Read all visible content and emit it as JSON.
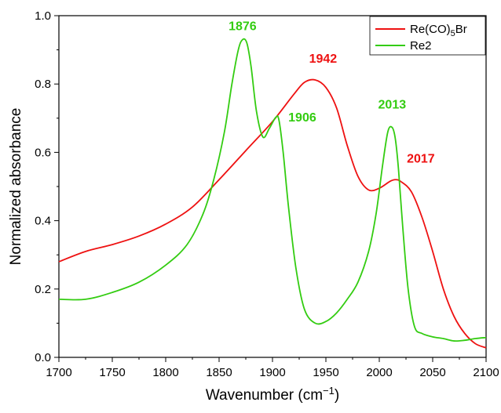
{
  "chart_data": {
    "type": "line",
    "xlabel": "Wavenumber (cm",
    "xlabel_superscript": "−1",
    "xlabel_suffix": ")",
    "ylabel": "Normalized absorbance",
    "xlim": [
      1700,
      2100
    ],
    "ylim": [
      0,
      1.0
    ],
    "xticks": [
      "1700",
      "1750",
      "1800",
      "1850",
      "1900",
      "1950",
      "2000",
      "2050",
      "2100"
    ],
    "yticks": [
      "0.0",
      "0.2",
      "0.4",
      "0.6",
      "0.8",
      "1.0"
    ],
    "grid": false,
    "legend_position": "top-right",
    "series": [
      {
        "name": "Re(CO)",
        "name_subscript": "5",
        "name_suffix": "Br",
        "color": "#ee1111",
        "x": [
          1700,
          1725,
          1750,
          1775,
          1800,
          1825,
          1850,
          1875,
          1900,
          1920,
          1930,
          1940,
          1950,
          1960,
          1970,
          1980,
          1990,
          2000,
          2010,
          2015,
          2020,
          2030,
          2040,
          2050,
          2060,
          2070,
          2080,
          2090,
          2100
        ],
        "values": [
          0.28,
          0.31,
          0.33,
          0.355,
          0.39,
          0.44,
          0.52,
          0.605,
          0.69,
          0.77,
          0.805,
          0.812,
          0.79,
          0.73,
          0.62,
          0.53,
          0.49,
          0.495,
          0.515,
          0.52,
          0.515,
          0.485,
          0.41,
          0.31,
          0.2,
          0.12,
          0.07,
          0.04,
          0.028
        ]
      },
      {
        "name": "Re2",
        "color": "#33cc11",
        "x": [
          1700,
          1725,
          1750,
          1775,
          1800,
          1820,
          1835,
          1845,
          1855,
          1862,
          1868,
          1872,
          1876,
          1880,
          1885,
          1891,
          1897,
          1903,
          1906,
          1910,
          1915,
          1922,
          1930,
          1940,
          1950,
          1960,
          1970,
          1980,
          1990,
          1997,
          2003,
          2008,
          2012,
          2015,
          2018,
          2022,
          2027,
          2033,
          2040,
          2050,
          2060,
          2070,
          2080,
          2090,
          2100
        ],
        "values": [
          0.17,
          0.17,
          0.19,
          0.22,
          0.27,
          0.33,
          0.42,
          0.52,
          0.66,
          0.8,
          0.9,
          0.93,
          0.92,
          0.85,
          0.72,
          0.645,
          0.67,
          0.702,
          0.695,
          0.6,
          0.44,
          0.26,
          0.14,
          0.1,
          0.105,
          0.13,
          0.17,
          0.22,
          0.31,
          0.42,
          0.56,
          0.66,
          0.673,
          0.64,
          0.55,
          0.38,
          0.2,
          0.09,
          0.07,
          0.06,
          0.055,
          0.048,
          0.05,
          0.055,
          0.058
        ]
      }
    ],
    "annotations": [
      {
        "text": "1876",
        "series": 1,
        "x": 1872,
        "y": 0.93
      },
      {
        "text": "1906",
        "series": 1,
        "x": 1906,
        "y": 0.702
      },
      {
        "text": "1942",
        "series": 0,
        "x": 1940,
        "y": 0.812
      },
      {
        "text": "2013",
        "series": 1,
        "x": 2012,
        "y": 0.673
      },
      {
        "text": "2017",
        "series": 0,
        "x": 2017,
        "y": 0.52
      }
    ]
  }
}
